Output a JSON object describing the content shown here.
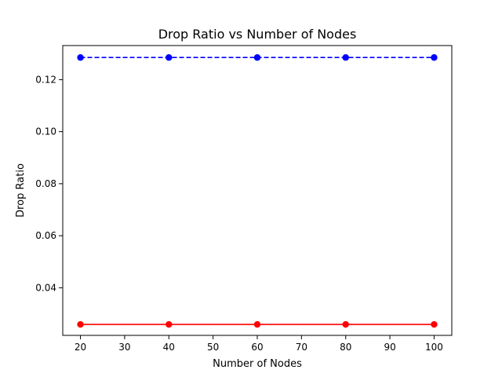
{
  "chart_data": {
    "type": "line",
    "title": "Drop Ratio vs Number of Nodes",
    "xlabel": "Number of Nodes",
    "ylabel": "Drop Ratio",
    "x": [
      20,
      40,
      60,
      80,
      100
    ],
    "xlim": [
      16,
      104
    ],
    "ylim": [
      0.0217,
      0.1331
    ],
    "xticks": [
      20,
      30,
      40,
      50,
      60,
      70,
      80,
      90,
      100
    ],
    "yticks": [
      0.04,
      0.06,
      0.08,
      0.1,
      0.12
    ],
    "ytick_labels": [
      "0.04",
      "0.06",
      "0.08",
      "0.10",
      "0.12"
    ],
    "grid": false,
    "series": [
      {
        "values": [
          0.1285,
          0.1285,
          0.1285,
          0.1285,
          0.1285
        ],
        "color": "#0000ff",
        "line_style": "dashed",
        "marker": "circle"
      },
      {
        "values": [
          0.0259,
          0.0259,
          0.0259,
          0.0259,
          0.0259
        ],
        "color": "#ff0000",
        "line_style": "solid",
        "marker": "circle"
      }
    ]
  }
}
